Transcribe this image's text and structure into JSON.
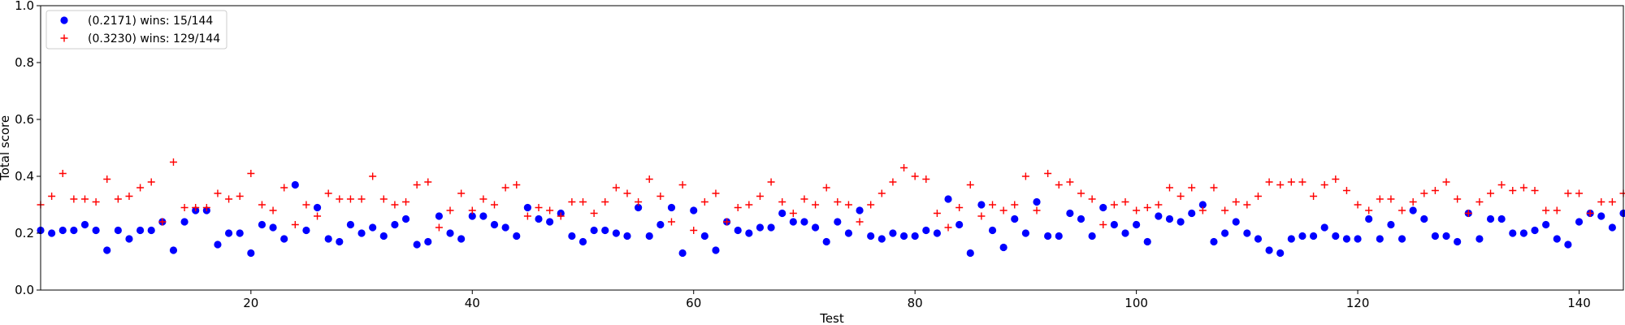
{
  "chart_data": {
    "type": "scatter",
    "title": "",
    "xlabel": "Test",
    "ylabel": "Total score",
    "xlim": [
      1,
      144
    ],
    "ylim": [
      0,
      1.0
    ],
    "x_ticks": [
      20,
      40,
      60,
      80,
      100,
      120,
      140
    ],
    "y_ticks": [
      0.0,
      0.2,
      0.4,
      0.6,
      0.8,
      1.0
    ],
    "y_tick_labels": [
      "0.0",
      "0.2",
      "0.4",
      "0.6",
      "0.8",
      "1.0"
    ],
    "grid": false,
    "legend_position": "top-left",
    "series": [
      {
        "name": "(0.2171) wins: 15/144",
        "marker": "circle",
        "color": "#0000ff",
        "values": [
          0.21,
          0.2,
          0.21,
          0.21,
          0.23,
          0.21,
          0.14,
          0.21,
          0.18,
          0.21,
          0.21,
          0.24,
          0.14,
          0.24,
          0.28,
          0.28,
          0.16,
          0.2,
          0.2,
          0.13,
          0.23,
          0.22,
          0.18,
          0.37,
          0.21,
          0.29,
          0.18,
          0.17,
          0.23,
          0.2,
          0.22,
          0.19,
          0.23,
          0.25,
          0.16,
          0.17,
          0.26,
          0.2,
          0.18,
          0.26,
          0.26,
          0.23,
          0.22,
          0.19,
          0.29,
          0.25,
          0.24,
          0.27,
          0.19,
          0.17,
          0.21,
          0.21,
          0.2,
          0.19,
          0.29,
          0.19,
          0.23,
          0.29,
          0.13,
          0.28,
          0.19,
          0.14,
          0.24,
          0.21,
          0.2,
          0.22,
          0.22,
          0.27,
          0.24,
          0.24,
          0.22,
          0.17,
          0.24,
          0.2,
          0.28,
          0.19,
          0.18,
          0.2,
          0.19,
          0.19,
          0.21,
          0.2,
          0.32,
          0.23,
          0.13,
          0.3,
          0.21,
          0.15,
          0.25,
          0.2,
          0.31,
          0.19,
          0.19,
          0.27,
          0.25,
          0.19,
          0.29,
          0.23,
          0.2,
          0.23,
          0.17,
          0.26,
          0.25,
          0.24,
          0.27,
          0.3,
          0.17,
          0.2,
          0.24,
          0.2,
          0.18,
          0.14,
          0.13,
          0.18,
          0.19,
          0.19,
          0.22,
          0.19,
          0.18,
          0.18,
          0.25,
          0.18,
          0.23,
          0.18,
          0.28,
          0.25,
          0.19,
          0.19,
          0.17,
          0.27,
          0.18,
          0.25,
          0.25,
          0.2,
          0.2,
          0.21,
          0.23,
          0.18,
          0.16,
          0.24,
          0.27,
          0.26,
          0.22,
          0.27
        ]
      },
      {
        "name": "(0.3230) wins: 129/144",
        "marker": "plus",
        "color": "#ff0000",
        "values": [
          0.3,
          0.33,
          0.41,
          0.32,
          0.32,
          0.31,
          0.39,
          0.32,
          0.33,
          0.36,
          0.38,
          0.24,
          0.45,
          0.29,
          0.29,
          0.29,
          0.34,
          0.32,
          0.33,
          0.41,
          0.3,
          0.28,
          0.36,
          0.23,
          0.3,
          0.26,
          0.34,
          0.32,
          0.32,
          0.32,
          0.4,
          0.32,
          0.3,
          0.31,
          0.37,
          0.38,
          0.22,
          0.28,
          0.34,
          0.28,
          0.32,
          0.3,
          0.36,
          0.37,
          0.26,
          0.29,
          0.28,
          0.26,
          0.31,
          0.31,
          0.27,
          0.31,
          0.36,
          0.34,
          0.31,
          0.39,
          0.33,
          0.24,
          0.37,
          0.21,
          0.31,
          0.34,
          0.24,
          0.29,
          0.3,
          0.33,
          0.38,
          0.31,
          0.27,
          0.32,
          0.3,
          0.36,
          0.31,
          0.3,
          0.24,
          0.3,
          0.34,
          0.38,
          0.43,
          0.4,
          0.39,
          0.27,
          0.22,
          0.29,
          0.37,
          0.26,
          0.3,
          0.28,
          0.3,
          0.4,
          0.28,
          0.41,
          0.37,
          0.38,
          0.34,
          0.32,
          0.23,
          0.3,
          0.31,
          0.28,
          0.29,
          0.3,
          0.36,
          0.33,
          0.36,
          0.28,
          0.36,
          0.28,
          0.31,
          0.3,
          0.33,
          0.38,
          0.37,
          0.38,
          0.38,
          0.33,
          0.37,
          0.39,
          0.35,
          0.3,
          0.28,
          0.32,
          0.32,
          0.28,
          0.31,
          0.34,
          0.35,
          0.38,
          0.32,
          0.27,
          0.31,
          0.34,
          0.37,
          0.35,
          0.36,
          0.35,
          0.28,
          0.28,
          0.34,
          0.34,
          0.27,
          0.31,
          0.31,
          0.34
        ]
      }
    ]
  }
}
